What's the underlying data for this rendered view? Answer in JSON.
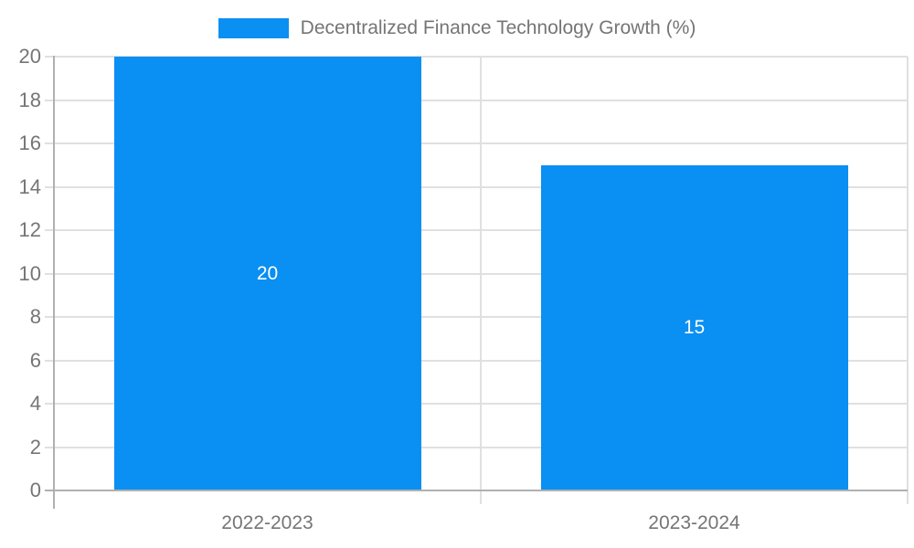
{
  "legend": {
    "label": "Decentralized Finance Technology Growth (%)",
    "swatch_color": "#0A8FF2"
  },
  "chart_data": {
    "type": "bar",
    "title": "Decentralized Finance Technology Growth (%)",
    "categories": [
      "2022-2023",
      "2023-2024"
    ],
    "values": [
      20,
      15
    ],
    "value_labels": [
      "20",
      "15"
    ],
    "xlabel": "",
    "ylabel": "",
    "ylim": [
      0,
      20
    ],
    "ytick_step": 2,
    "yticks": [
      0,
      2,
      4,
      6,
      8,
      10,
      12,
      14,
      16,
      18,
      20
    ],
    "grid": true,
    "legend_position": "top-center",
    "colors": {
      "bar": "#0A8FF2",
      "grid": "#e0e0e0",
      "axis": "#b0b0b0",
      "tick_text": "#757575",
      "value_text": "#ffffff",
      "background": "#ffffff"
    }
  }
}
